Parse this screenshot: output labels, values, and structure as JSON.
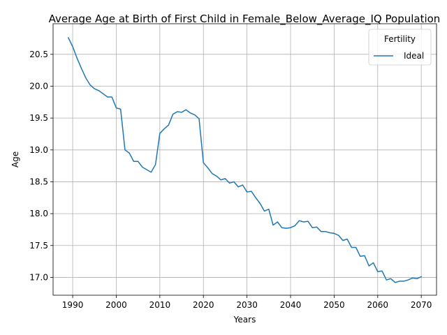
{
  "chart_data": {
    "type": "line",
    "title": "Average Age at Birth of First Child in Female_Below_Average_IQ Population",
    "xlabel": "Years",
    "ylabel": "Age",
    "xlim": [
      1985.5,
      2073.5
    ],
    "ylim": [
      16.72,
      20.98
    ],
    "xticks": [
      1990,
      2000,
      2010,
      2020,
      2030,
      2040,
      2050,
      2060,
      2070
    ],
    "yticks": [
      17.0,
      17.5,
      18.0,
      18.5,
      19.0,
      19.5,
      20.0,
      20.5
    ],
    "grid": true,
    "legend": {
      "title": "Fertility",
      "placement": "top-right"
    },
    "series": [
      {
        "name": "Ideal",
        "color": "#1f77b4",
        "x": [
          1989,
          1990,
          1991,
          1992,
          1993,
          1994,
          1995,
          1996,
          1997,
          1998,
          1999,
          2000,
          2001,
          2002,
          2003,
          2004,
          2005,
          2006,
          2007,
          2008,
          2009,
          2010,
          2011,
          2012,
          2013,
          2014,
          2015,
          2016,
          2017,
          2018,
          2019,
          2020,
          2021,
          2022,
          2023,
          2024,
          2025,
          2026,
          2027,
          2028,
          2029,
          2030,
          2031,
          2032,
          2033,
          2034,
          2035,
          2036,
          2037,
          2038,
          2039,
          2040,
          2041,
          2042,
          2043,
          2044,
          2045,
          2046,
          2047,
          2048,
          2049,
          2050,
          2051,
          2052,
          2053,
          2054,
          2055,
          2056,
          2057,
          2058,
          2059,
          2060,
          2061,
          2062,
          2063,
          2064,
          2065,
          2066,
          2067,
          2068,
          2069,
          2070
        ],
        "y": [
          20.76,
          20.62,
          20.44,
          20.28,
          20.13,
          20.02,
          19.96,
          19.93,
          19.88,
          19.83,
          19.83,
          19.66,
          19.64,
          19.0,
          18.95,
          18.82,
          18.82,
          18.73,
          18.69,
          18.65,
          18.77,
          19.26,
          19.33,
          19.39,
          19.56,
          19.6,
          19.59,
          19.63,
          19.58,
          19.55,
          19.49,
          18.8,
          18.72,
          18.63,
          18.59,
          18.53,
          18.55,
          18.48,
          18.5,
          18.42,
          18.45,
          18.34,
          18.35,
          18.25,
          18.16,
          18.04,
          18.07,
          17.82,
          17.87,
          17.78,
          17.77,
          17.78,
          17.81,
          17.89,
          17.87,
          17.88,
          17.78,
          17.79,
          17.72,
          17.72,
          17.7,
          17.69,
          17.66,
          17.58,
          17.6,
          17.47,
          17.47,
          17.33,
          17.34,
          17.18,
          17.23,
          17.09,
          17.1,
          16.96,
          16.98,
          16.92,
          16.94,
          16.94,
          16.96,
          16.99,
          16.98,
          17.01
        ]
      }
    ]
  }
}
